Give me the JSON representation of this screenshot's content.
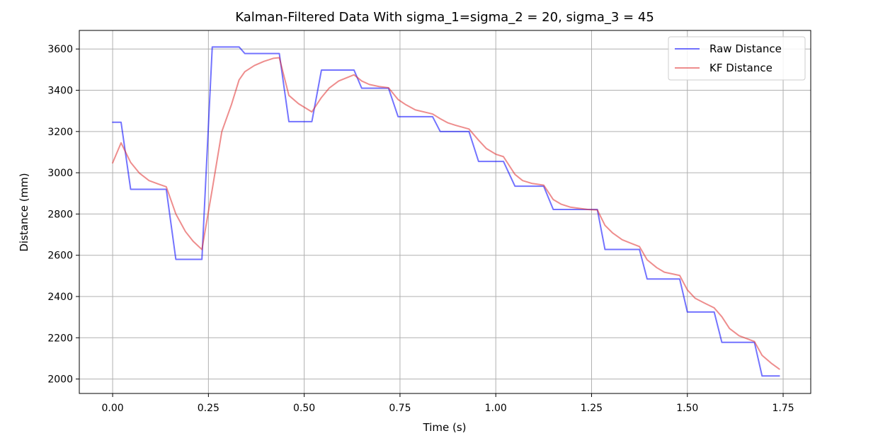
{
  "chart_data": {
    "type": "line",
    "title": "Kalman-Filtered Data With sigma_1=sigma_2 = 20, sigma_3 = 45",
    "xlabel": "Time (s)",
    "ylabel": "Distance (mm)",
    "xlim": [
      -0.087,
      1.822
    ],
    "ylim": [
      1930,
      3690
    ],
    "xticks": [
      0.0,
      0.25,
      0.5,
      0.75,
      1.0,
      1.25,
      1.5,
      1.75
    ],
    "xtick_labels": [
      "0.00",
      "0.25",
      "0.50",
      "0.75",
      "1.00",
      "1.25",
      "1.50",
      "1.75"
    ],
    "yticks": [
      2000,
      2200,
      2400,
      2600,
      2800,
      3000,
      3200,
      3400,
      3600
    ],
    "ytick_labels": [
      "2000",
      "2200",
      "2400",
      "2600",
      "2800",
      "3000",
      "3200",
      "3400",
      "3600"
    ],
    "grid": true,
    "legend_position": "top-right",
    "series": [
      {
        "name": "Raw Distance",
        "color": "#0000ff",
        "x": [
          0.0,
          0.022,
          0.047,
          0.095,
          0.14,
          0.165,
          0.19,
          0.233,
          0.26,
          0.285,
          0.33,
          0.345,
          0.395,
          0.435,
          0.46,
          0.485,
          0.52,
          0.545,
          0.59,
          0.63,
          0.65,
          0.695,
          0.72,
          0.745,
          0.79,
          0.835,
          0.855,
          0.895,
          0.93,
          0.955,
          1.0,
          1.02,
          1.05,
          1.095,
          1.125,
          1.15,
          1.195,
          1.24,
          1.265,
          1.285,
          1.33,
          1.375,
          1.395,
          1.44,
          1.48,
          1.5,
          1.545,
          1.57,
          1.59,
          1.635,
          1.675,
          1.695,
          1.74
        ],
        "values": [
          3245,
          3245,
          2920,
          2920,
          2920,
          2580,
          2580,
          2580,
          3610,
          3610,
          3610,
          3578,
          3578,
          3578,
          3248,
          3248,
          3248,
          3498,
          3498,
          3498,
          3410,
          3410,
          3410,
          3272,
          3272,
          3272,
          3200,
          3200,
          3200,
          3055,
          3055,
          3055,
          2935,
          2935,
          2935,
          2822,
          2822,
          2822,
          2822,
          2628,
          2628,
          2628,
          2485,
          2485,
          2485,
          2325,
          2325,
          2325,
          2178,
          2178,
          2178,
          2015,
          2015
        ]
      },
      {
        "name": "KF Distance",
        "color": "#e03030",
        "x": [
          0.0,
          0.022,
          0.047,
          0.07,
          0.095,
          0.12,
          0.14,
          0.165,
          0.19,
          0.21,
          0.233,
          0.26,
          0.285,
          0.31,
          0.33,
          0.345,
          0.37,
          0.395,
          0.42,
          0.435,
          0.46,
          0.485,
          0.52,
          0.545,
          0.565,
          0.59,
          0.63,
          0.65,
          0.67,
          0.695,
          0.72,
          0.745,
          0.765,
          0.79,
          0.835,
          0.855,
          0.875,
          0.895,
          0.93,
          0.955,
          0.975,
          1.0,
          1.02,
          1.05,
          1.07,
          1.095,
          1.125,
          1.15,
          1.17,
          1.195,
          1.24,
          1.265,
          1.285,
          1.305,
          1.33,
          1.375,
          1.395,
          1.42,
          1.44,
          1.48,
          1.5,
          1.52,
          1.545,
          1.57,
          1.59,
          1.61,
          1.635,
          1.675,
          1.695,
          1.72,
          1.74
        ],
        "values": [
          3048,
          3145,
          3050,
          2998,
          2962,
          2945,
          2932,
          2800,
          2715,
          2668,
          2628,
          2920,
          3200,
          3330,
          3450,
          3490,
          3520,
          3540,
          3555,
          3558,
          3375,
          3335,
          3295,
          3365,
          3410,
          3445,
          3475,
          3445,
          3428,
          3418,
          3412,
          3355,
          3330,
          3305,
          3285,
          3262,
          3242,
          3230,
          3212,
          3158,
          3118,
          3090,
          3078,
          2992,
          2962,
          2948,
          2940,
          2870,
          2848,
          2833,
          2822,
          2820,
          2745,
          2708,
          2675,
          2642,
          2578,
          2540,
          2518,
          2502,
          2432,
          2392,
          2368,
          2345,
          2302,
          2245,
          2210,
          2182,
          2115,
          2075,
          2048
        ]
      }
    ]
  }
}
